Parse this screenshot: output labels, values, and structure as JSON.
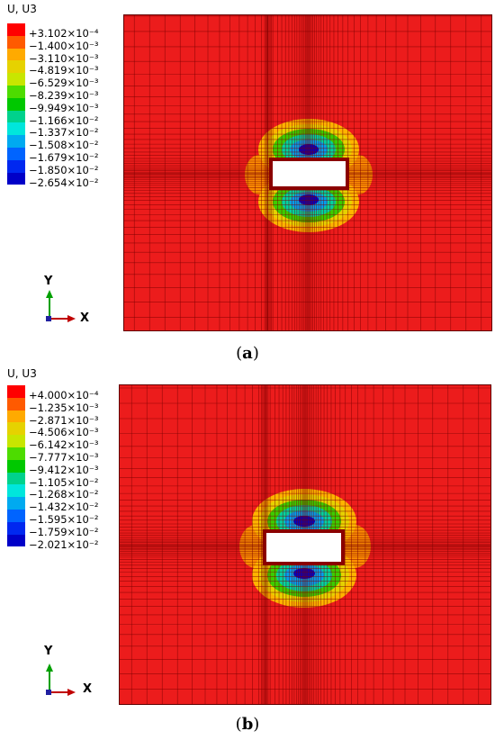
{
  "figures": [
    {
      "id": "a",
      "legend_title": "U, U3",
      "legend_labels": [
        "+3.102×10⁻⁴",
        "−1.400×10⁻³",
        "−3.110×10⁻³",
        "−4.819×10⁻³",
        "−6.529×10⁻³",
        "−8.239×10⁻³",
        "−9.949×10⁻³",
        "−1.166×10⁻²",
        "−1.337×10⁻²",
        "−1.508×10⁻²",
        "−1.679×10⁻²",
        "−1.850×10⁻²",
        "−2.654×10⁻²"
      ],
      "axis_y": "Y",
      "axis_x": "X",
      "caption_open": "(",
      "caption_letter": "a",
      "caption_close": ")"
    },
    {
      "id": "b",
      "legend_title": "U, U3",
      "legend_labels": [
        "+4.000×10⁻⁴",
        "−1.235×10⁻³",
        "−2.871×10⁻³",
        "−4.506×10⁻³",
        "−6.142×10⁻³",
        "−7.777×10⁻³",
        "−9.412×10⁻³",
        "−1.105×10⁻²",
        "−1.268×10⁻²",
        "−1.432×10⁻²",
        "−1.595×10⁻²",
        "−1.759×10⁻²",
        "−2.021×10⁻²"
      ],
      "axis_y": "Y",
      "axis_x": "X",
      "caption_open": "(",
      "caption_letter": "b",
      "caption_close": ")"
    }
  ],
  "colors": {
    "legend_swatches": [
      "#ff0000",
      "#ff5a00",
      "#ffaa00",
      "#e6d200",
      "#c8e600",
      "#4ddc00",
      "#00c800",
      "#00d28c",
      "#00e6dc",
      "#00aaf0",
      "#0064ff",
      "#0028f0",
      "#0000c8"
    ],
    "mesh_background": "#ec1c1c",
    "mesh_lines": "#7a0000",
    "axis_y_color": "#00a000",
    "axis_x_color": "#c00000"
  }
}
